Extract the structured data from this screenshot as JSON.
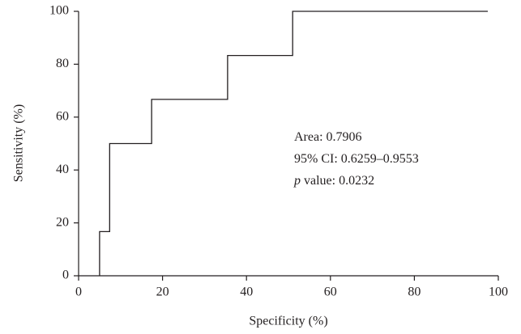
{
  "chart_data": {
    "type": "line",
    "x_label": "Specificity (%)",
    "y_label": "Sensitivity (%)",
    "x": [
      5,
      5,
      7.4,
      7.4,
      17.4,
      17.4,
      35.5,
      35.5,
      51,
      51,
      97.5
    ],
    "series": [
      {
        "color": "#231f20",
        "values": [
          0,
          16.7,
          16.7,
          50,
          50,
          66.7,
          66.7,
          83.3,
          83.3,
          100,
          100
        ]
      }
    ],
    "xlim": [
      0,
      100
    ],
    "xticks": [
      0,
      20,
      40,
      60,
      80,
      100
    ],
    "ylim": [
      0,
      100
    ],
    "yticks": [
      0,
      20,
      40,
      60,
      80,
      100
    ],
    "grid": false,
    "annotations": [
      [
        "Area: 0.7906"
      ],
      [
        "95% CI: 0.6259–0.9553"
      ],
      [
        "p",
        " value: 0.0232"
      ]
    ]
  }
}
